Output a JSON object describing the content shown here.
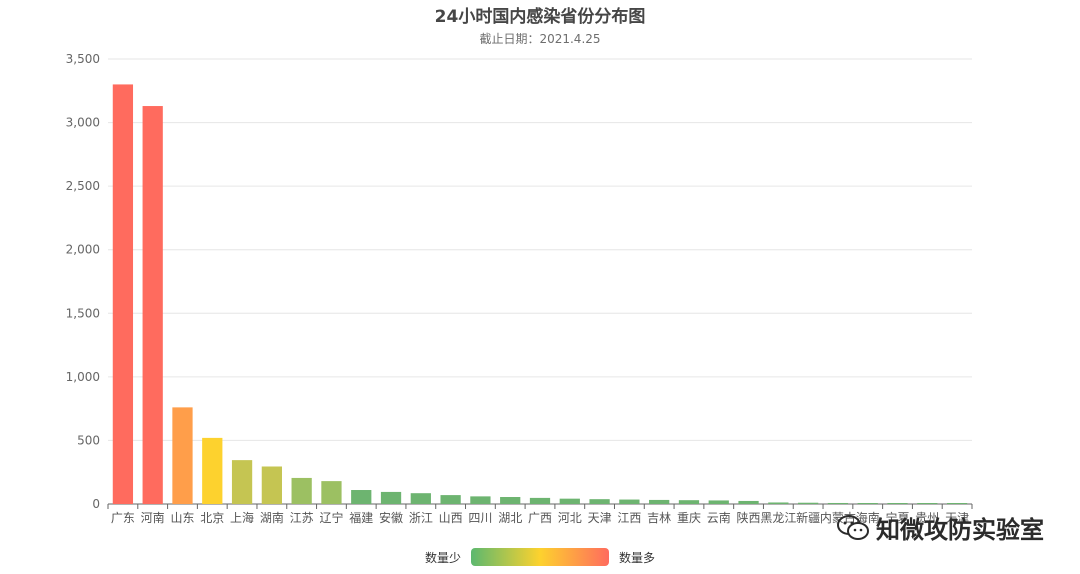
{
  "title": "24小时国内感染省份分布图",
  "subtitle": "截止日期：2021.4.25",
  "legend": {
    "low_label": "数量少",
    "high_label": "数量多"
  },
  "watermark": {
    "text": "知微攻防实验室"
  },
  "colors": {
    "high": "#ff6b5e",
    "orange": "#ff9e4a",
    "yellow": "#fdd22e",
    "olive": "#c5c552",
    "green_light": "#9cc062",
    "green": "#6db470",
    "axis": "#666666",
    "grid": "#e6e6e6"
  },
  "chart_data": {
    "type": "bar",
    "title": "24小时国内感染省份分布图",
    "subtitle": "截止日期：2021.4.25",
    "xlabel": "",
    "ylabel": "",
    "ylim": [
      0,
      3500
    ],
    "yticks": [
      "0",
      "500",
      "1,000",
      "1,500",
      "2,000",
      "2,500",
      "3,000",
      "3,500"
    ],
    "categories": [
      "广东",
      "河南",
      "山东",
      "北京",
      "上海",
      "湖南",
      "江苏",
      "辽宁",
      "福建",
      "安徽",
      "浙江",
      "山西",
      "四川",
      "湖北",
      "广西",
      "河北",
      "天津",
      "江西",
      "吉林",
      "重庆",
      "云南",
      "陕西",
      "黑龙江",
      "新疆",
      "内蒙古",
      "海南",
      "宁夏",
      "贵州",
      "天津"
    ],
    "values": [
      3300,
      3130,
      760,
      520,
      345,
      295,
      205,
      180,
      110,
      95,
      85,
      70,
      60,
      55,
      48,
      42,
      38,
      35,
      32,
      30,
      28,
      24,
      12,
      10,
      8,
      6,
      5,
      4,
      3
    ],
    "visual_map": {
      "min_label": "数量少",
      "max_label": "数量多"
    },
    "grid": true
  }
}
